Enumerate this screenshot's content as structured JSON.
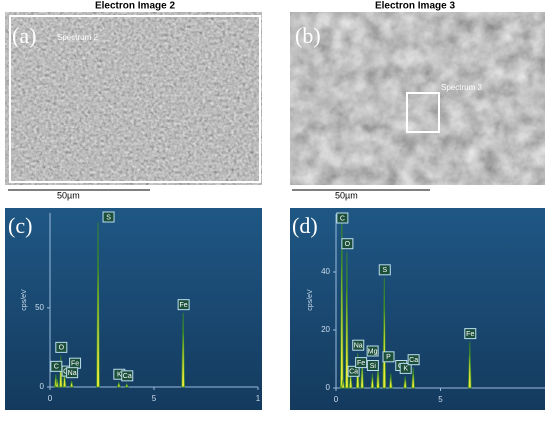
{
  "images": [
    {
      "title": "Electron Image 2",
      "panel_label": "(a)",
      "spectrum_label": "Spectrum 2",
      "scale_label": "50µm"
    },
    {
      "title": "Electron Image 3",
      "panel_label": "(b)",
      "spectrum_label": "Spectrum 3",
      "scale_label": "50µm"
    }
  ],
  "chart_data": [
    {
      "type": "spectrum",
      "panel_label": "(c)",
      "y_label": "cps/eV",
      "color": "#e8e83a",
      "xlim": [
        0,
        10
      ],
      "ylim": [
        0,
        110
      ],
      "xticks": [
        0,
        5,
        {
          "value": 10,
          "label": "1"
        }
      ],
      "yticks": [
        0,
        50
      ],
      "peak_labels": [
        "C",
        "Ca",
        "O",
        "Fe",
        "Na",
        "S",
        "K",
        "Ca",
        "Fe"
      ],
      "x": [
        0.28,
        0.34,
        0.52,
        0.7,
        1.04,
        2.31,
        3.31,
        3.69,
        6.4
      ],
      "values": [
        8,
        5,
        20,
        10,
        4,
        104,
        3,
        2,
        47
      ]
    },
    {
      "type": "spectrum",
      "panel_label": "(d)",
      "y_label": "cps/eV",
      "color": "#e8e83a",
      "xlim": [
        0,
        10
      ],
      "ylim": [
        0,
        60
      ],
      "xticks": [
        0,
        5
      ],
      "yticks": [
        0,
        20,
        40
      ],
      "peak_labels": [
        "C",
        "Ca",
        "O",
        "Fe",
        "Na",
        "Mg",
        "Si",
        "P",
        "S",
        "Cl",
        "K",
        "Ca",
        "Fe"
      ],
      "x": [
        0.28,
        0.34,
        0.52,
        0.7,
        1.04,
        1.25,
        1.74,
        2.01,
        2.31,
        2.62,
        3.31,
        3.69,
        6.4
      ],
      "values": [
        60,
        3,
        47,
        6,
        12,
        10,
        5,
        8,
        38,
        5,
        4,
        7,
        16
      ]
    }
  ]
}
